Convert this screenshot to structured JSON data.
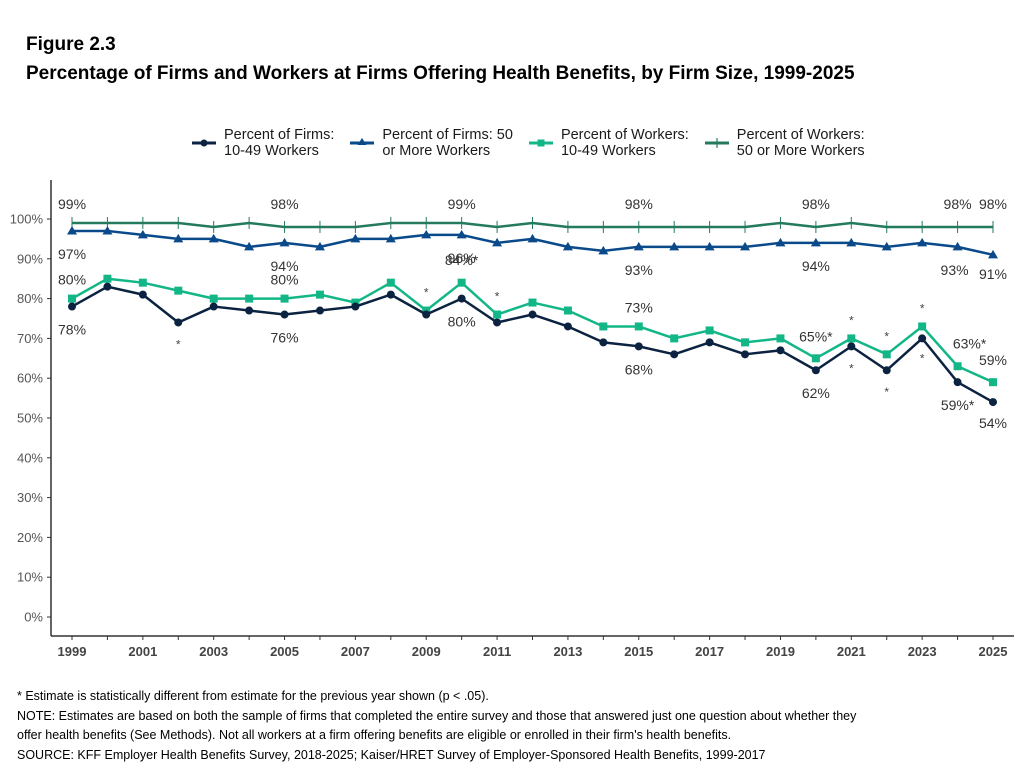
{
  "figure": {
    "label": "Figure 2.3",
    "title": "Percentage of Firms and Workers at Firms Offering Health Benefits, by Firm Size, 1999-2025"
  },
  "legend": [
    {
      "label": "Percent of Firms:\n10-49 Workers",
      "marker": "circle",
      "color": "#0b2240"
    },
    {
      "label": "Percent of Firms: 50\nor More Workers",
      "marker": "triangle",
      "color": "#0a4a8a"
    },
    {
      "label": "Percent of Workers:\n10-49 Workers",
      "marker": "square",
      "color": "#13b787"
    },
    {
      "label": "Percent of Workers:\n50 or More Workers",
      "marker": "plus",
      "color": "#247a5e"
    }
  ],
  "chart_data": {
    "type": "line",
    "title": "Percentage of Firms and Workers at Firms Offering Health Benefits, by Firm Size, 1999-2025",
    "xlabel": "",
    "ylabel": "",
    "x": [
      1999,
      2000,
      2001,
      2002,
      2003,
      2004,
      2005,
      2006,
      2007,
      2008,
      2009,
      2010,
      2011,
      2012,
      2013,
      2014,
      2015,
      2016,
      2017,
      2018,
      2019,
      2020,
      2021,
      2022,
      2023,
      2024,
      2025
    ],
    "xticks": [
      "1999",
      "2001",
      "2003",
      "2005",
      "2007",
      "2009",
      "2011",
      "2013",
      "2015",
      "2017",
      "2019",
      "2021",
      "2023",
      "2025"
    ],
    "ylim": [
      0,
      100
    ],
    "yticks": [
      "0%",
      "10%",
      "20%",
      "30%",
      "40%",
      "50%",
      "60%",
      "70%",
      "80%",
      "90%",
      "100%"
    ],
    "grid": false,
    "legend_position": "top",
    "series": [
      {
        "name": "Percent of Firms: 10-49 Workers",
        "color": "#0b2240",
        "marker": "circle",
        "values": [
          78,
          83,
          81,
          74,
          78,
          77,
          76,
          77,
          78,
          81,
          76,
          80,
          74,
          76,
          73,
          69,
          68,
          66,
          69,
          66,
          67,
          62,
          68,
          62,
          70,
          59,
          54
        ],
        "labels": [
          {
            "year": 1999,
            "text": "78%",
            "pos": "below"
          },
          {
            "year": 2005,
            "text": "76%",
            "pos": "below"
          },
          {
            "year": 2010,
            "text": "80%",
            "pos": "below"
          },
          {
            "year": 2015,
            "text": "68%",
            "pos": "below"
          },
          {
            "year": 2020,
            "text": "62%",
            "pos": "below"
          },
          {
            "year": 2024,
            "text": "59%*",
            "pos": "below"
          },
          {
            "year": 2025,
            "text": "54%",
            "pos": "below"
          }
        ],
        "significant_years": [
          2002,
          2021,
          2022,
          2023
        ]
      },
      {
        "name": "Percent of Firms: 50 or More Workers",
        "color": "#0a4a8a",
        "marker": "triangle",
        "values": [
          97,
          97,
          96,
          95,
          95,
          93,
          94,
          93,
          95,
          95,
          96,
          96,
          94,
          95,
          93,
          92,
          93,
          93,
          93,
          93,
          94,
          94,
          94,
          93,
          94,
          93,
          91
        ],
        "labels": [
          {
            "year": 1999,
            "text": "97%",
            "pos": "below"
          },
          {
            "year": 2005,
            "text": "94%",
            "pos": "below"
          },
          {
            "year": 2010,
            "text": "96%",
            "pos": "below"
          },
          {
            "year": 2015,
            "text": "93%",
            "pos": "below"
          },
          {
            "year": 2020,
            "text": "94%",
            "pos": "below"
          },
          {
            "year": 2024,
            "text": "93%",
            "pos": "below"
          },
          {
            "year": 2025,
            "text": "91%",
            "pos": "below"
          }
        ],
        "significant_years": []
      },
      {
        "name": "Percent of Workers: 10-49 Workers",
        "color": "#13b787",
        "marker": "square",
        "values": [
          80,
          85,
          84,
          82,
          80,
          80,
          80,
          81,
          79,
          84,
          77,
          84,
          76,
          79,
          77,
          73,
          73,
          70,
          72,
          69,
          70,
          65,
          70,
          66,
          73,
          63,
          59
        ],
        "labels": [
          {
            "year": 1999,
            "text": "80%",
            "pos": "above"
          },
          {
            "year": 2005,
            "text": "80%",
            "pos": "above"
          },
          {
            "year": 2010,
            "text": "84%*",
            "pos": "above"
          },
          {
            "year": 2015,
            "text": "73%",
            "pos": "above"
          },
          {
            "year": 2020,
            "text": "65%*",
            "pos": "above"
          },
          {
            "year": 2024,
            "text": "63%*",
            "pos": "above"
          },
          {
            "year": 2025,
            "text": "59%",
            "pos": "above"
          }
        ],
        "significant_years": [
          2009,
          2011,
          2021,
          2022,
          2023
        ]
      },
      {
        "name": "Percent of Workers: 50 or More Workers",
        "color": "#247a5e",
        "marker": "plus",
        "values": [
          99,
          99,
          99,
          99,
          98,
          99,
          98,
          98,
          98,
          99,
          99,
          99,
          98,
          99,
          98,
          98,
          98,
          98,
          98,
          98,
          99,
          98,
          99,
          98,
          98,
          98,
          98
        ],
        "labels": [
          {
            "year": 1999,
            "text": "99%",
            "pos": "above"
          },
          {
            "year": 2005,
            "text": "98%",
            "pos": "above"
          },
          {
            "year": 2010,
            "text": "99%",
            "pos": "above"
          },
          {
            "year": 2015,
            "text": "98%",
            "pos": "above"
          },
          {
            "year": 2020,
            "text": "98%",
            "pos": "above"
          },
          {
            "year": 2024,
            "text": "98%",
            "pos": "above"
          },
          {
            "year": 2025,
            "text": "98%",
            "pos": "above"
          }
        ],
        "significant_years": []
      }
    ]
  },
  "notes": {
    "significance": "* Estimate is statistically different from estimate for the previous year shown (p < .05).",
    "note_line1": "NOTE: Estimates are based on both the sample of firms that completed the entire survey and those that answered just one question about whether they",
    "note_line2": "offer health benefits (See Methods). Not all workers at a firm offering benefits are eligible or enrolled in their firm's health benefits.",
    "source": "SOURCE: KFF Employer Health Benefits Survey, 2018-2025; Kaiser/HRET Survey of Employer-Sponsored Health Benefits, 1999-2017"
  }
}
